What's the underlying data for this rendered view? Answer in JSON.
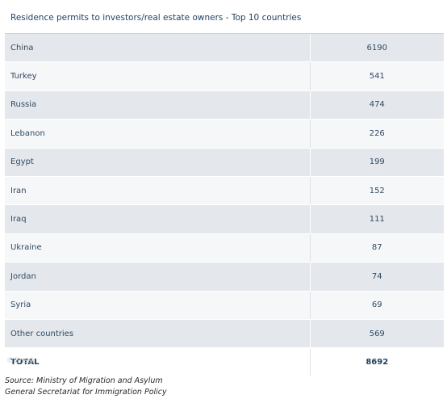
{
  "title": "Residence permits to investors/real estate owners - Top 10 countries",
  "chart_data": {
    "type": "table",
    "title": "Residence permits to investors/real estate owners - Top 10 countries",
    "rows": [
      {
        "country": "China",
        "value": "6190"
      },
      {
        "country": "Turkey",
        "value": "541"
      },
      {
        "country": "Russia",
        "value": "474"
      },
      {
        "country": "Lebanon",
        "value": "226"
      },
      {
        "country": "Egypt",
        "value": "199"
      },
      {
        "country": "Iran",
        "value": "152"
      },
      {
        "country": "Iraq",
        "value": "111"
      },
      {
        "country": "Ukraine",
        "value": "87"
      },
      {
        "country": "Jordan",
        "value": "74"
      },
      {
        "country": "Syria",
        "value": "69"
      },
      {
        "country": "Other countries",
        "value": "569"
      }
    ],
    "total": {
      "label": "TOTAL",
      "value": "8692"
    }
  },
  "watermark": "©Greek",
  "source": {
    "line1": "Source: Ministry of Migration and Asylum",
    "line2": "General Secretariat for Immigration Policy"
  }
}
